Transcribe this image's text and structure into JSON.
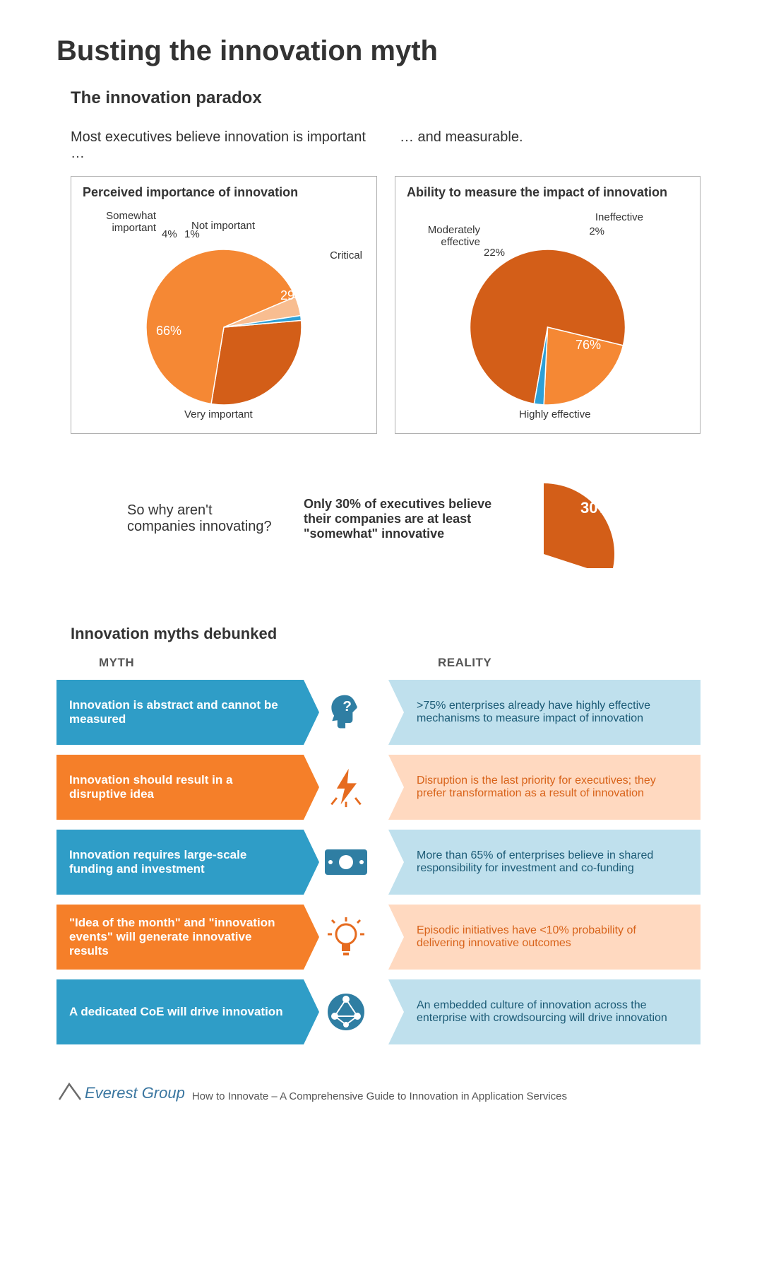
{
  "title": "Busting the innovation myth",
  "subtitle": "The innovation paradox",
  "lead_left": "Most executives believe innovation is important …",
  "lead_right": "… and measurable.",
  "pie1": {
    "title": "Perceived importance of innovation",
    "type": "pie",
    "slices": [
      {
        "label": "Critical",
        "value": 29,
        "color": "#d35e18"
      },
      {
        "label": "Very important",
        "value": 66,
        "color": "#f58834"
      },
      {
        "label": "Somewhat important",
        "value": 4,
        "color": "#f8bd90"
      },
      {
        "label": "Not important",
        "value": 1,
        "color": "#2ea0d6"
      }
    ],
    "label_fontsize": 15,
    "pct_fontsize": 18,
    "background": "#ffffff",
    "border": "#b0b0b0"
  },
  "pie2": {
    "title": "Ability to measure the impact of innovation",
    "type": "pie",
    "slices": [
      {
        "label": "Highly effective",
        "value": 76,
        "color": "#d35e18"
      },
      {
        "label": "Moderately effective",
        "value": 22,
        "color": "#f58834"
      },
      {
        "label": "Ineffective",
        "value": 2,
        "color": "#2ea0d6"
      }
    ],
    "label_fontsize": 15,
    "pct_fontsize": 18,
    "background": "#ffffff",
    "border": "#b0b0b0"
  },
  "callout": {
    "question": "So why aren't companies innovating?",
    "answer": "Only 30% of executives believe their companies are at least \"somewhat\" innovative",
    "value": 30,
    "wedge_color": "#d35e18",
    "wedge_label": "30%"
  },
  "myths_heading": "Innovation myths debunked",
  "col_myth": "MYTH",
  "col_reality": "REALITY",
  "rows": [
    {
      "myth": "Innovation is abstract and cannot be measured",
      "reality": ">75% enterprises already have highly effective mechanisms to measure impact of innovation",
      "theme": "blue",
      "icon": "head-question",
      "icon_color": "#2f7ea3"
    },
    {
      "myth": "Innovation should result in a disruptive idea",
      "reality": "Disruption is the last priority for executives; they prefer transformation as a result of innovation",
      "theme": "orange",
      "icon": "lightning",
      "icon_color": "#e66b1f"
    },
    {
      "myth": "Innovation requires large-scale funding and investment",
      "reality": "More than 65% of enterprises believe in shared responsibility for investment and co-funding",
      "theme": "blue",
      "icon": "money",
      "icon_color": "#2f7ea3"
    },
    {
      "myth": "\"Idea of the month\" and \"innovation events\" will generate innovative results",
      "reality": "Episodic initiatives have <10% probability of delivering innovative outcomes",
      "theme": "orange",
      "icon": "bulb",
      "icon_color": "#e66b1f"
    },
    {
      "myth": "A dedicated CoE will drive innovation",
      "reality": "An embedded culture of innovation across the enterprise with crowdsourcing will drive innovation",
      "theme": "blue",
      "icon": "network",
      "icon_color": "#2f7ea3"
    }
  ],
  "footer": {
    "brand": "Everest Group",
    "tagline": "How to Innovate – A Comprehensive Guide to Innovation in Application Services"
  },
  "palette": {
    "blue_dark": "#2f7ea3",
    "blue_mid": "#2f9dc7",
    "blue_light": "#bfe0ed",
    "orange_dark": "#d35e18",
    "orange_mid": "#f57f29",
    "orange_light": "#ffd9c0",
    "text": "#333333"
  }
}
